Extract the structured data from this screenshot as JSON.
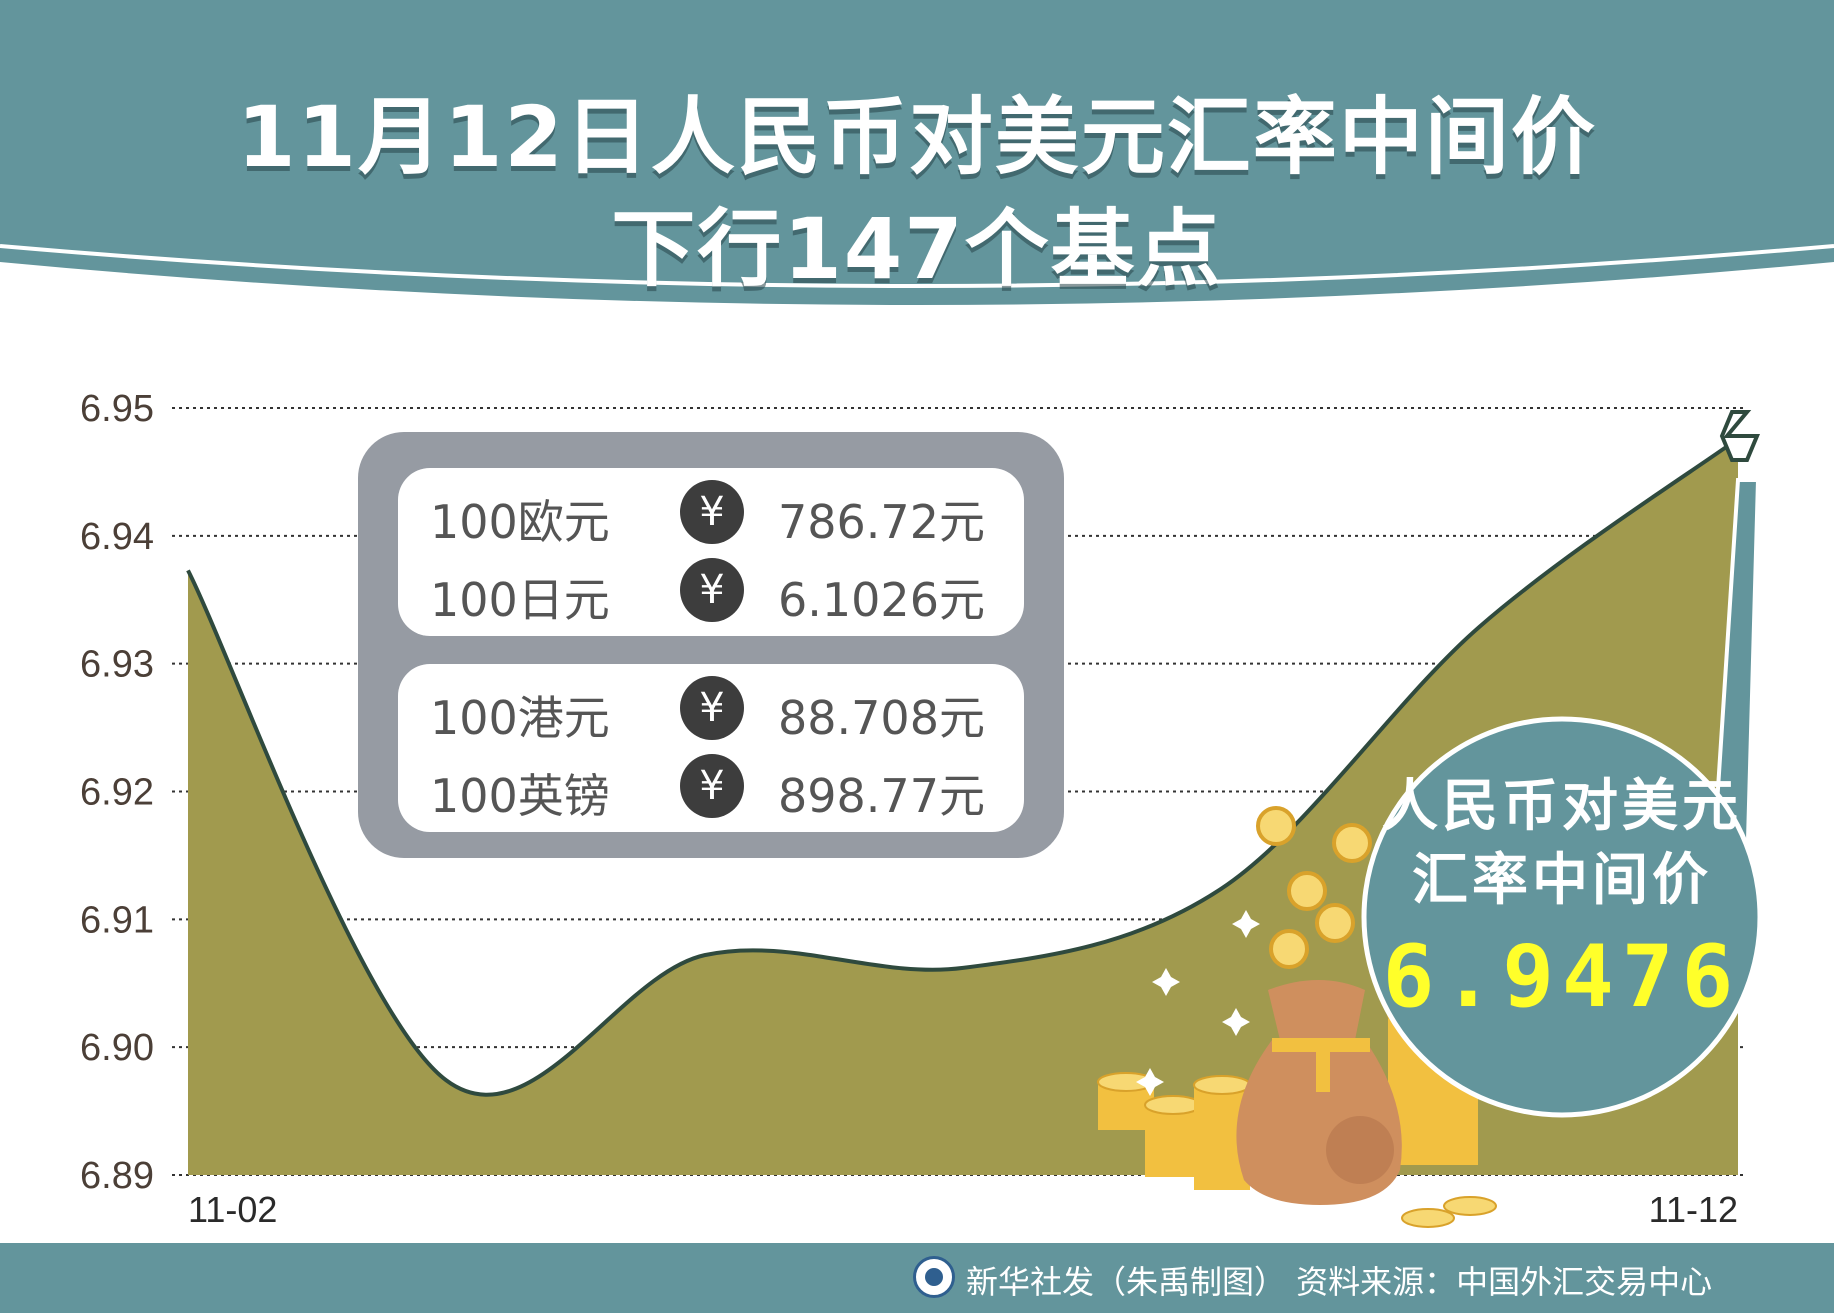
{
  "header": {
    "title_line1": "11月12日人民币对美元汇率中间价",
    "title_line2": "下行147个基点"
  },
  "rates_panel": {
    "currency_icon": "yen-icon",
    "groups": [
      {
        "rows": [
          {
            "label": "100欧元",
            "symbol": "¥",
            "value": "786.72元"
          },
          {
            "label": "100日元",
            "symbol": "¥",
            "value": "6.1026元"
          }
        ]
      },
      {
        "rows": [
          {
            "label": "100港元",
            "symbol": "¥",
            "value": "88.708元"
          },
          {
            "label": "100英镑",
            "symbol": "¥",
            "value": "898.77元"
          }
        ]
      }
    ]
  },
  "callout": {
    "line1": "人民币对美元",
    "line2": "汇率中间价",
    "value": "6.9476"
  },
  "footer": {
    "text": "新华社发（朱禹制图） 资料来源：中国外汇交易中心"
  },
  "colors": {
    "header_bg": "#63959c",
    "area_fill": "#a19a4e",
    "area_line": "#2f4a3e",
    "callout_bg": "#63959c",
    "callout_value": "#ffff2a",
    "panel_bg": "#969ba3"
  },
  "chart_data": {
    "type": "area",
    "x_labels": [
      "11-02",
      "11-12"
    ],
    "y_ticks": [
      "6.95",
      "6.94",
      "6.93",
      "6.92",
      "6.91",
      "6.90",
      "6.89"
    ],
    "ylim": [
      6.89,
      6.95
    ],
    "grid": "horizontal-dotted",
    "series": [
      {
        "values": [
          6.9373,
          6.8974,
          6.9072,
          6.9062,
          6.9124,
          6.9329,
          6.9476
        ]
      }
    ]
  }
}
